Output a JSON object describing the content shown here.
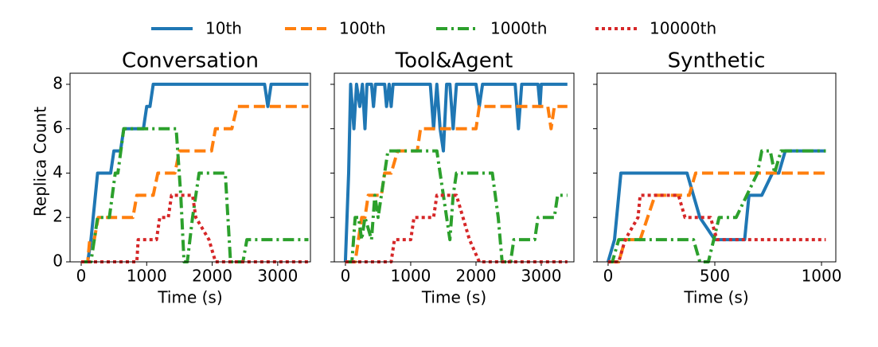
{
  "chart_data": [
    {
      "type": "line",
      "title": "Conversation",
      "xlabel": "Time (s)",
      "ylabel": "Replica Count",
      "xlim": [
        -170,
        3500
      ],
      "ylim": [
        0,
        8.5
      ],
      "xticks": [
        0,
        1000,
        2000,
        3000
      ],
      "yticks": [
        0,
        2,
        4,
        6,
        8
      ],
      "series": [
        {
          "name": "10th",
          "color": "#1f77b4",
          "style": "solid",
          "x": [
            0,
            100,
            150,
            250,
            450,
            500,
            600,
            650,
            950,
            1000,
            1050,
            1100,
            2800,
            2850,
            2900,
            3470
          ],
          "values": [
            0,
            0,
            1,
            4,
            4,
            5,
            5,
            6,
            6,
            7,
            7,
            8,
            8,
            7,
            8,
            8
          ]
        },
        {
          "name": "100th",
          "color": "#ff7f0e",
          "style": "dashed",
          "x": [
            0,
            100,
            130,
            200,
            260,
            790,
            850,
            1100,
            1170,
            1430,
            1500,
            1990,
            2050,
            2300,
            2380,
            3470
          ],
          "values": [
            0,
            0,
            1,
            1,
            2,
            2,
            3,
            3,
            4,
            4,
            5,
            5,
            6,
            6,
            7,
            7
          ]
        },
        {
          "name": "1000th",
          "color": "#2ca02c",
          "style": "dashdot",
          "x": [
            0,
            150,
            250,
            430,
            520,
            560,
            650,
            1450,
            1520,
            1570,
            1620,
            1700,
            1800,
            2200,
            2280,
            2470,
            2530,
            3470
          ],
          "values": [
            0,
            0,
            2,
            2,
            4,
            4,
            6,
            6,
            3,
            0,
            0,
            2,
            4,
            4,
            0,
            0,
            1,
            1
          ]
        },
        {
          "name": "10000th",
          "color": "#d62728",
          "style": "dotted",
          "x": [
            0,
            850,
            870,
            1150,
            1200,
            1330,
            1380,
            1700,
            1750,
            1950,
            2050,
            3470
          ],
          "values": [
            0,
            0,
            1,
            1,
            2,
            2,
            3,
            3,
            2,
            1,
            0,
            0
          ]
        }
      ]
    },
    {
      "type": "line",
      "title": "Tool&Agent",
      "xlabel": "Time (s)",
      "xlim": [
        -170,
        3500
      ],
      "ylim": [
        0,
        8.5
      ],
      "xticks": [
        0,
        1000,
        2000,
        3000
      ],
      "yticks": [
        0,
        2,
        4,
        6,
        8
      ],
      "series": [
        {
          "color": "#1f77b4",
          "style": "solid",
          "x": [
            0,
            50,
            80,
            130,
            170,
            220,
            260,
            300,
            330,
            400,
            430,
            460,
            600,
            630,
            670,
            700,
            730,
            1300,
            1350,
            1400,
            1450,
            1500,
            1550,
            1600,
            1650,
            1700,
            2000,
            2050,
            2100,
            2600,
            2650,
            2700,
            2950,
            2980,
            3000,
            3400
          ],
          "values": [
            0,
            4,
            8,
            6,
            8,
            7,
            8,
            6,
            8,
            8,
            7,
            8,
            8,
            7,
            8,
            7,
            8,
            8,
            6,
            8,
            6,
            5,
            8,
            8,
            6,
            8,
            8,
            7,
            8,
            8,
            6,
            8,
            8,
            7,
            8,
            8
          ]
        },
        {
          "color": "#ff7f0e",
          "style": "dashed",
          "x": [
            0,
            150,
            200,
            250,
            300,
            350,
            550,
            600,
            700,
            800,
            1100,
            1150,
            2000,
            2050,
            3100,
            3150,
            3200,
            3400
          ],
          "values": [
            0,
            0,
            1,
            2,
            2,
            3,
            3,
            4,
            4,
            5,
            5,
            6,
            6,
            7,
            7,
            6,
            7,
            7
          ]
        },
        {
          "color": "#2ca02c",
          "style": "dashdot",
          "x": [
            0,
            100,
            150,
            200,
            250,
            300,
            400,
            450,
            500,
            550,
            650,
            1400,
            1500,
            1600,
            1650,
            1700,
            2250,
            2340,
            2400,
            2530,
            2580,
            2900,
            2950,
            3200,
            3250,
            3400
          ],
          "values": [
            0,
            0,
            2,
            2,
            1,
            2,
            1,
            3,
            2,
            3,
            5,
            5,
            3,
            1,
            3,
            4,
            4,
            2,
            0,
            0,
            1,
            1,
            2,
            2,
            3,
            3
          ]
        },
        {
          "color": "#d62728",
          "style": "dotted",
          "x": [
            0,
            700,
            750,
            1000,
            1050,
            1350,
            1400,
            1700,
            1800,
            1900,
            2050,
            3400
          ],
          "values": [
            0,
            0,
            1,
            1,
            2,
            2,
            3,
            3,
            2,
            1,
            0,
            0
          ]
        }
      ]
    },
    {
      "type": "line",
      "title": "Synthetic",
      "xlabel": "Time (s)",
      "xlim": [
        -52,
        1067
      ],
      "ylim": [
        0,
        8.5
      ],
      "xticks": [
        0,
        500,
        1000
      ],
      "yticks": [
        0,
        2,
        4,
        6,
        8
      ],
      "series": [
        {
          "color": "#1f77b4",
          "style": "solid",
          "x": [
            0,
            30,
            60,
            370,
            430,
            500,
            640,
            660,
            720,
            770,
            800,
            830,
            1020
          ],
          "values": [
            0,
            1,
            4,
            4,
            2,
            1,
            1,
            3,
            3,
            4,
            4,
            5,
            5
          ]
        },
        {
          "color": "#ff7f0e",
          "style": "dashed",
          "x": [
            0,
            50,
            80,
            150,
            220,
            380,
            410,
            1020
          ],
          "values": [
            0,
            0,
            1,
            1,
            3,
            3,
            4,
            4
          ]
        },
        {
          "color": "#2ca02c",
          "style": "dashdot",
          "x": [
            0,
            20,
            50,
            130,
            350,
            400,
            430,
            470,
            520,
            600,
            650,
            700,
            720,
            760,
            780,
            810,
            1020
          ],
          "values": [
            0,
            0,
            1,
            1,
            1,
            1,
            0,
            0,
            2,
            2,
            3,
            4,
            5,
            5,
            4,
            5,
            5
          ]
        },
        {
          "color": "#d62728",
          "style": "dotted",
          "x": [
            0,
            50,
            80,
            140,
            150,
            330,
            360,
            480,
            510,
            1020
          ],
          "values": [
            0,
            0,
            1,
            2,
            3,
            3,
            2,
            2,
            1,
            1
          ]
        }
      ]
    }
  ]
}
